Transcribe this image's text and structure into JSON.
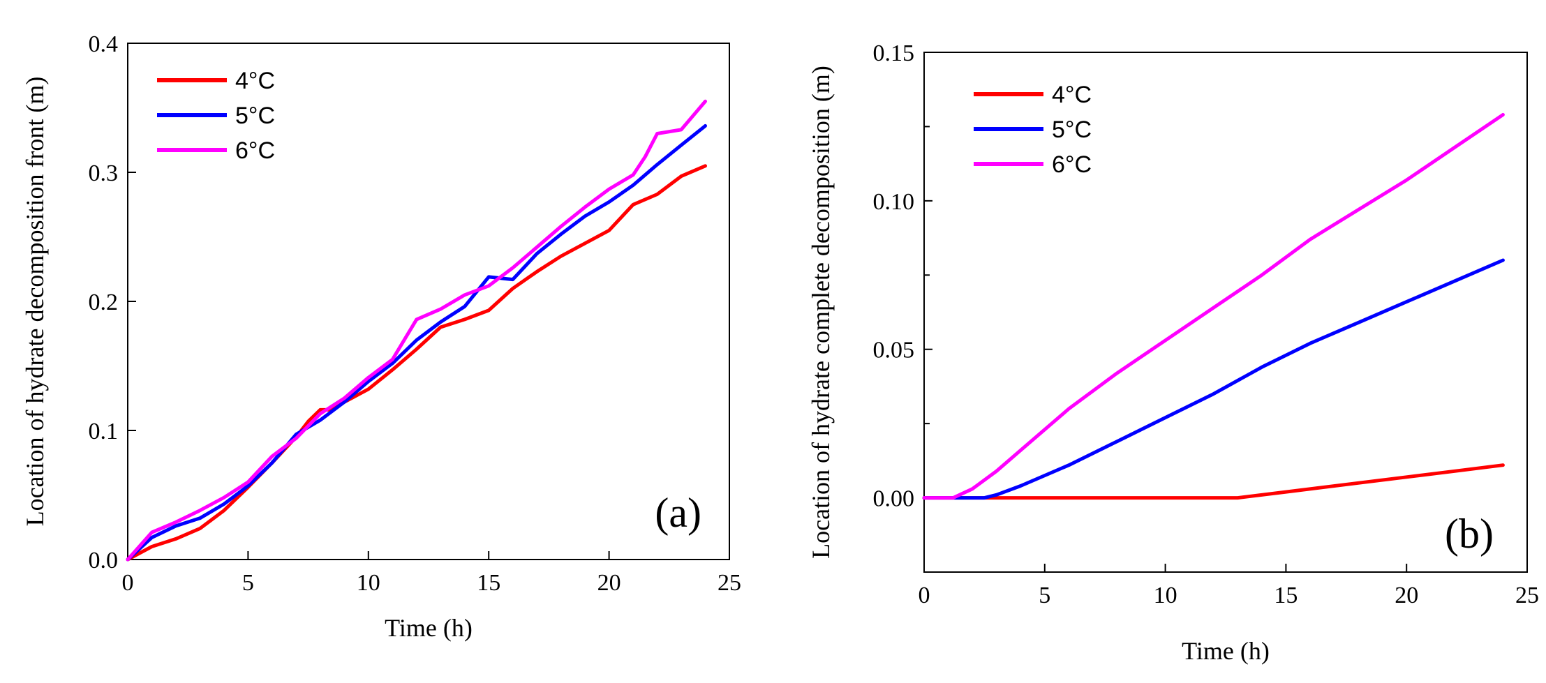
{
  "chart_data": [
    {
      "type": "line",
      "panel_label": "(a)",
      "xlabel": "Time (h)",
      "ylabel": "Location of hydrate decomposition front (m)",
      "xlim": [
        0,
        25
      ],
      "ylim": [
        0,
        0.4
      ],
      "xticks": [
        0,
        5,
        10,
        15,
        20,
        25
      ],
      "yticks": [
        0,
        0.1,
        0.2,
        0.3,
        0.4
      ],
      "xtick_labels": [
        "0",
        "5",
        "10",
        "15",
        "20",
        "25"
      ],
      "ytick_labels": [
        "0.0",
        "0.1",
        "0.2",
        "0.3",
        "0.4"
      ],
      "legend_position": "top-left",
      "series": [
        {
          "name": "4°C",
          "color": "#ff0000",
          "x": [
            0,
            1,
            2,
            3,
            4,
            5,
            6,
            7,
            7.5,
            8,
            8.5,
            9,
            10,
            11,
            12,
            13,
            14,
            15,
            16,
            17,
            18,
            19,
            20,
            21,
            22,
            23,
            24
          ],
          "y": [
            0,
            0.01,
            0.016,
            0.024,
            0.038,
            0.056,
            0.075,
            0.095,
            0.107,
            0.116,
            0.116,
            0.122,
            0.132,
            0.147,
            0.163,
            0.18,
            0.186,
            0.193,
            0.21,
            0.223,
            0.235,
            0.245,
            0.255,
            0.275,
            0.283,
            0.297,
            0.305
          ]
        },
        {
          "name": "5°C",
          "color": "#0000ff",
          "x": [
            0,
            1,
            2,
            3,
            4,
            5,
            6,
            7,
            8,
            9,
            10,
            11,
            12,
            13,
            14,
            15,
            16,
            17,
            18,
            19,
            20,
            21,
            22,
            23,
            24
          ],
          "y": [
            0,
            0.017,
            0.026,
            0.032,
            0.043,
            0.057,
            0.075,
            0.097,
            0.108,
            0.122,
            0.138,
            0.152,
            0.17,
            0.184,
            0.196,
            0.219,
            0.217,
            0.237,
            0.252,
            0.266,
            0.277,
            0.29,
            0.306,
            0.321,
            0.336
          ]
        },
        {
          "name": "6°C",
          "color": "#ff00ff",
          "x": [
            0,
            1,
            2,
            3,
            4,
            5,
            6,
            7,
            8,
            9,
            10,
            11,
            12,
            13,
            14,
            15,
            16,
            17,
            18,
            19,
            20,
            21,
            21.5,
            22,
            23,
            24
          ],
          "y": [
            0,
            0.021,
            0.029,
            0.038,
            0.048,
            0.06,
            0.08,
            0.094,
            0.113,
            0.125,
            0.141,
            0.155,
            0.186,
            0.194,
            0.205,
            0.212,
            0.226,
            0.242,
            0.258,
            0.273,
            0.287,
            0.298,
            0.312,
            0.33,
            0.333,
            0.355
          ]
        }
      ]
    },
    {
      "type": "line",
      "panel_label": "(b)",
      "xlabel": "Time (h)",
      "ylabel": "Location of hydrate complete decomposition (m)",
      "xlim": [
        0,
        25
      ],
      "ylim": [
        -0.025,
        0.15
      ],
      "xticks": [
        0,
        5,
        10,
        15,
        20,
        25
      ],
      "yticks": [
        0,
        0.05,
        0.1,
        0.15
      ],
      "xtick_labels": [
        "0",
        "5",
        "10",
        "15",
        "20",
        "25"
      ],
      "ytick_labels": [
        "0.00",
        "0.05",
        "0.10",
        "0.15"
      ],
      "minor_yticks": [
        -0.025,
        0.025,
        0.075,
        0.125
      ],
      "legend_position": "top-left",
      "series": [
        {
          "name": "4°C",
          "color": "#ff0000",
          "x": [
            0,
            5,
            10,
            13,
            15,
            18,
            20,
            22,
            24
          ],
          "y": [
            0,
            0,
            0,
            0,
            0.002,
            0.005,
            0.007,
            0.009,
            0.011
          ]
        },
        {
          "name": "5°C",
          "color": "#0000ff",
          "x": [
            0,
            1.5,
            2.5,
            3,
            4,
            6,
            8,
            10,
            12,
            14,
            16,
            18,
            20,
            22,
            24
          ],
          "y": [
            0,
            0,
            0,
            0.001,
            0.004,
            0.011,
            0.019,
            0.027,
            0.035,
            0.044,
            0.052,
            0.059,
            0.066,
            0.073,
            0.08
          ]
        },
        {
          "name": "6°C",
          "color": "#ff00ff",
          "x": [
            0,
            1.2,
            2,
            3,
            4,
            6,
            8,
            10,
            12,
            14,
            16,
            18,
            20,
            22,
            24
          ],
          "y": [
            0,
            0,
            0.003,
            0.009,
            0.016,
            0.03,
            0.042,
            0.053,
            0.064,
            0.075,
            0.087,
            0.097,
            0.107,
            0.118,
            0.129
          ]
        }
      ]
    }
  ]
}
